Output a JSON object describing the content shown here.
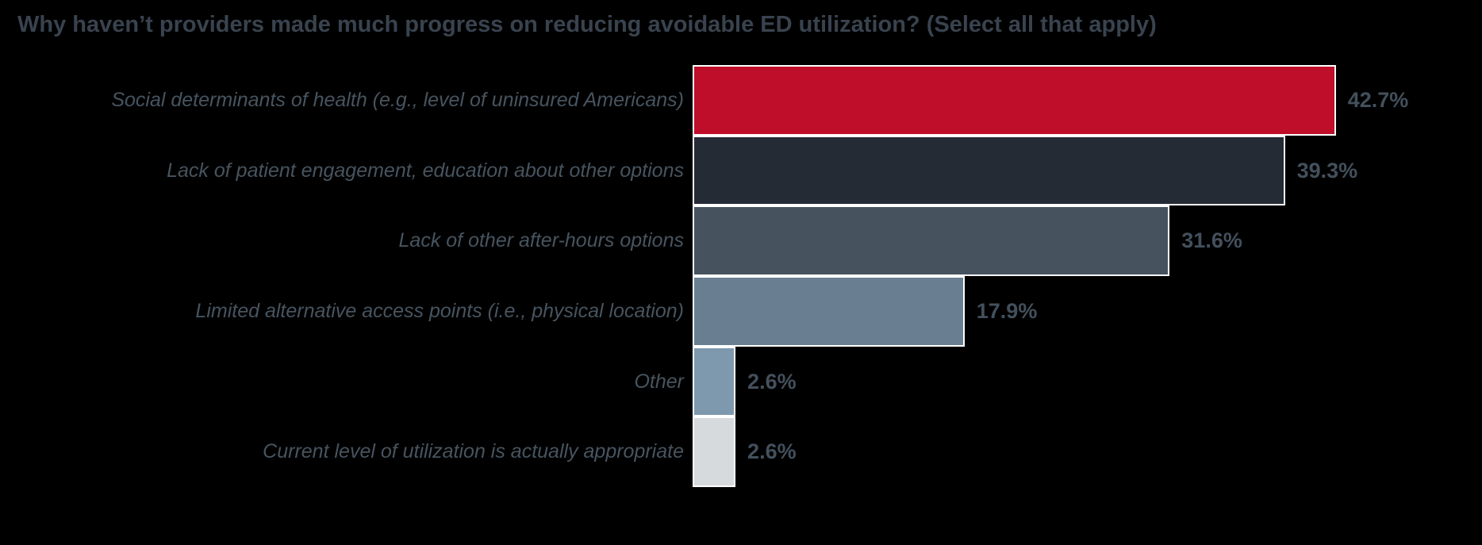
{
  "title": "Why haven’t providers made much progress on reducing avoidable ED utilization? (Select all that apply)",
  "colors": {
    "background": "#000000",
    "title_text": "#39434F",
    "category_text": "#47545F",
    "value_text": "#43505C",
    "bar_edge": "#FFFFFF"
  },
  "chart_data": {
    "type": "bar",
    "orientation": "horizontal",
    "title": "Why haven’t providers made much progress on reducing avoidable ED utilization? (Select all that apply)",
    "categories": [
      "Social determinants of health (e.g., level of uninsured Americans)",
      "Lack of patient engagement, education about other options",
      "Lack of other after-hours options",
      "Limited alternative access points (i.e., physical location)",
      "Other",
      "Current level of utilization is actually appropriate"
    ],
    "values": [
      42.7,
      39.3,
      31.6,
      17.9,
      2.6,
      2.6
    ],
    "value_labels": [
      "42.7%",
      "39.3%",
      "31.6%",
      "17.9%",
      "2.6%",
      "2.6%"
    ],
    "bar_colors": [
      "#BE0E29",
      "#242B35",
      "#46535F",
      "#697F91",
      "#7E99AD",
      "#D6DADD"
    ],
    "xlabel": "",
    "ylabel": "",
    "xlim": [
      0,
      47
    ],
    "grid": false,
    "legend": false,
    "axes_visible": false,
    "bar_label_position": "outside-end",
    "category_label_style": "italic, right-aligned"
  }
}
